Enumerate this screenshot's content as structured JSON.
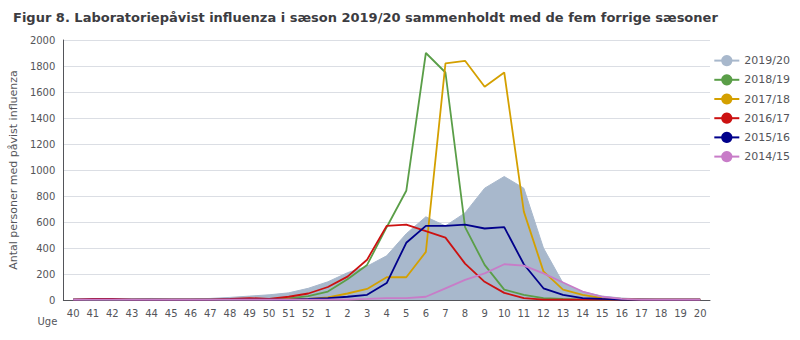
{
  "chart_data": {
    "type": "line",
    "title": "Figur 8. Laboratoriepåvist influenza i sæson 2019/20 sammenholdt med de fem forrige sæsoner",
    "ylabel": "Antal personer med påvist influenza",
    "xlabel": "Uge",
    "categories": [
      40,
      41,
      42,
      43,
      44,
      45,
      46,
      47,
      48,
      49,
      50,
      51,
      52,
      1,
      2,
      3,
      4,
      5,
      6,
      7,
      8,
      9,
      10,
      11,
      12,
      13,
      14,
      15,
      16,
      17,
      18,
      19,
      20
    ],
    "series": [
      {
        "name": "2019/20",
        "type": "area",
        "color": "#a8b8cc",
        "values": [
          3,
          3,
          3,
          8,
          12,
          8,
          8,
          12,
          20,
          30,
          40,
          55,
          90,
          140,
          210,
          260,
          340,
          510,
          640,
          570,
          670,
          860,
          950,
          860,
          400,
          130,
          65,
          30,
          15,
          8,
          3,
          3,
          3
        ]
      },
      {
        "name": "2018/19",
        "type": "line",
        "color": "#5a9e48",
        "values": [
          3,
          3,
          3,
          3,
          3,
          3,
          3,
          3,
          3,
          8,
          8,
          12,
          30,
          65,
          160,
          270,
          560,
          840,
          1900,
          1750,
          560,
          270,
          80,
          40,
          15,
          8,
          3,
          3,
          3,
          3,
          3,
          3,
          3
        ]
      },
      {
        "name": "2017/18",
        "type": "line",
        "color": "#d4a000",
        "values": [
          3,
          3,
          3,
          3,
          3,
          3,
          3,
          3,
          3,
          3,
          3,
          8,
          8,
          20,
          50,
          85,
          175,
          175,
          370,
          1820,
          1840,
          1640,
          1750,
          680,
          220,
          80,
          40,
          15,
          8,
          3,
          3,
          3,
          3
        ]
      },
      {
        "name": "2016/17",
        "type": "line",
        "color": "#cc1111",
        "values": [
          3,
          8,
          8,
          3,
          3,
          3,
          3,
          3,
          8,
          15,
          8,
          25,
          50,
          100,
          180,
          310,
          570,
          580,
          530,
          480,
          280,
          140,
          55,
          15,
          3,
          3,
          3,
          3,
          3,
          3,
          3,
          3,
          3
        ]
      },
      {
        "name": "2015/16",
        "type": "line",
        "color": "#00008b",
        "values": [
          3,
          3,
          3,
          3,
          3,
          3,
          3,
          3,
          3,
          3,
          3,
          3,
          8,
          15,
          25,
          40,
          130,
          440,
          570,
          570,
          580,
          550,
          560,
          275,
          90,
          40,
          15,
          8,
          3,
          3,
          3,
          3,
          3
        ]
      },
      {
        "name": "2014/15",
        "type": "line",
        "color": "#c87cc8",
        "values": [
          3,
          3,
          3,
          3,
          3,
          3,
          3,
          3,
          3,
          3,
          3,
          3,
          3,
          3,
          3,
          8,
          15,
          15,
          25,
          90,
          155,
          205,
          275,
          265,
          205,
          135,
          65,
          25,
          8,
          3,
          3,
          3,
          3
        ]
      }
    ],
    "ylim": [
      0,
      2000
    ],
    "yticks": [
      0,
      200,
      400,
      600,
      800,
      1000,
      1200,
      1400,
      1600,
      1800,
      2000
    ],
    "grid": true,
    "legend": "upper right"
  }
}
